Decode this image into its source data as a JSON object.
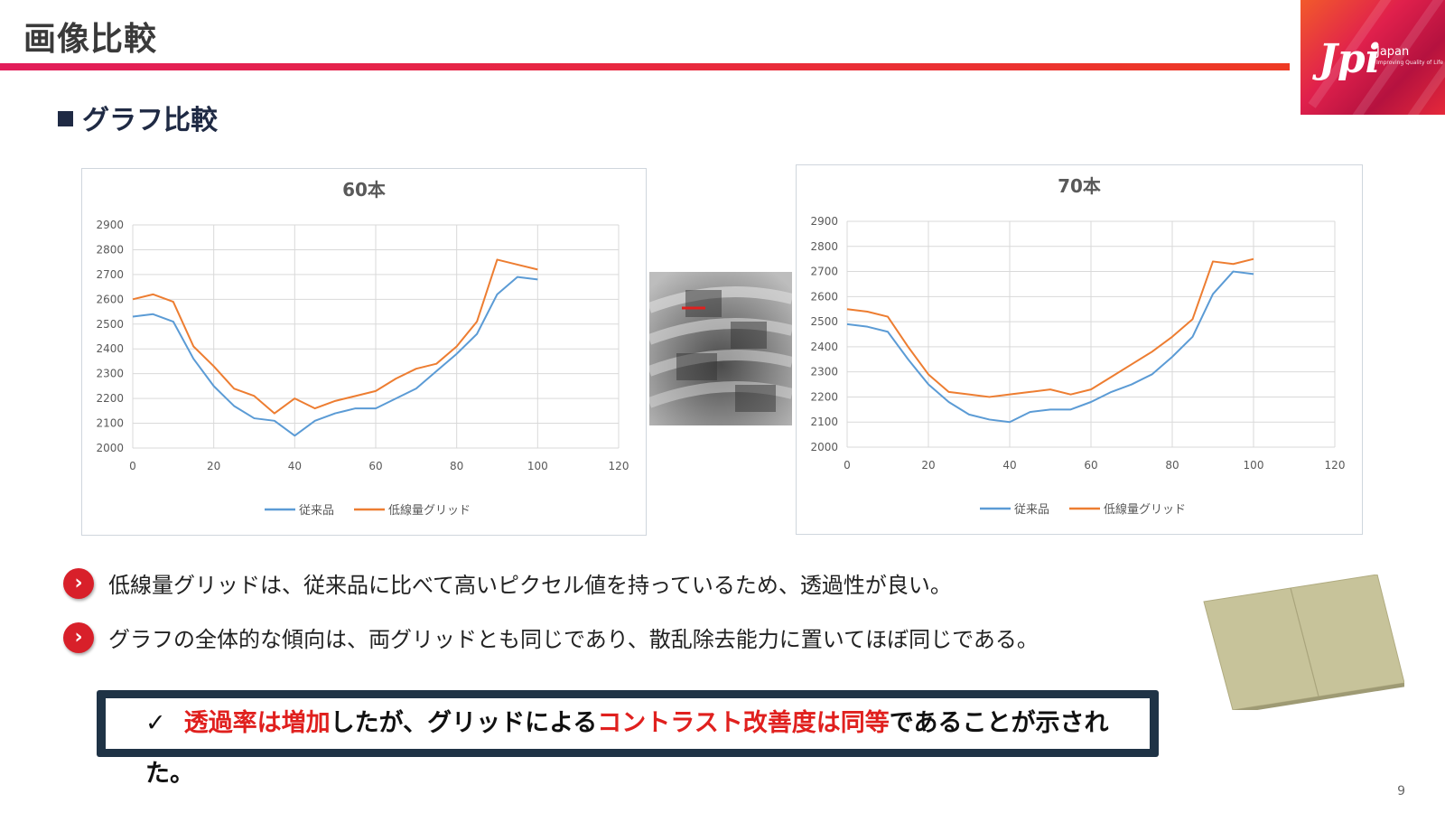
{
  "slide": {
    "title": "画像比較",
    "page_number": "9"
  },
  "logo": {
    "mark": "Jpi",
    "country": "Japan",
    "tagline": "Improving Quality of Life"
  },
  "section": {
    "heading": "グラフ比較"
  },
  "chart_data": [
    {
      "type": "line",
      "title": "60本",
      "xlim": [
        0,
        120
      ],
      "ylim": [
        2000,
        2900
      ],
      "x_ticks": [
        "0",
        "20",
        "40",
        "60",
        "80",
        "100",
        "120"
      ],
      "y_ticks": [
        "2000",
        "2100",
        "2200",
        "2300",
        "2400",
        "2500",
        "2600",
        "2700",
        "2800",
        "2900"
      ],
      "grid": true,
      "legend_position": "bottom",
      "x": [
        0,
        5,
        10,
        15,
        20,
        25,
        30,
        35,
        40,
        45,
        50,
        55,
        60,
        65,
        70,
        75,
        80,
        85,
        90,
        95,
        100
      ],
      "series": [
        {
          "name": "従来品",
          "color": "#5b9bd5",
          "values": [
            2530,
            2540,
            2510,
            2360,
            2250,
            2170,
            2120,
            2110,
            2050,
            2110,
            2140,
            2160,
            2160,
            2200,
            2240,
            2310,
            2380,
            2460,
            2620,
            2690,
            2680
          ]
        },
        {
          "name": "低線量グリッド",
          "color": "#ed7d31",
          "values": [
            2600,
            2620,
            2590,
            2410,
            2330,
            2240,
            2210,
            2140,
            2200,
            2160,
            2190,
            2210,
            2230,
            2280,
            2320,
            2340,
            2410,
            2510,
            2760,
            2740,
            2720
          ]
        }
      ]
    },
    {
      "type": "line",
      "title": "70本",
      "xlim": [
        0,
        120
      ],
      "ylim": [
        2000,
        2900
      ],
      "x_ticks": [
        "0",
        "20",
        "40",
        "60",
        "80",
        "100",
        "120"
      ],
      "y_ticks": [
        "2000",
        "2100",
        "2200",
        "2300",
        "2400",
        "2500",
        "2600",
        "2700",
        "2800",
        "2900"
      ],
      "grid": true,
      "legend_position": "bottom",
      "x": [
        0,
        5,
        10,
        15,
        20,
        25,
        30,
        35,
        40,
        45,
        50,
        55,
        60,
        65,
        70,
        75,
        80,
        85,
        90,
        95,
        100
      ],
      "series": [
        {
          "name": "従来品",
          "color": "#5b9bd5",
          "values": [
            2490,
            2480,
            2460,
            2350,
            2250,
            2180,
            2130,
            2110,
            2100,
            2140,
            2150,
            2150,
            2180,
            2220,
            2250,
            2290,
            2360,
            2440,
            2610,
            2700,
            2690
          ]
        },
        {
          "name": "低線量グリッド",
          "color": "#ed7d31",
          "values": [
            2550,
            2540,
            2520,
            2400,
            2290,
            2220,
            2210,
            2200,
            2210,
            2220,
            2230,
            2210,
            2230,
            2280,
            2330,
            2380,
            2440,
            2510,
            2740,
            2730,
            2750
          ]
        }
      ]
    }
  ],
  "bullets": [
    "低線量グリッドは、従来品に比べて高いピクセル値を持っているため、透過性が良い。",
    "グラフの全体的な傾向は、両グリッドとも同じであり、散乱除去能力に置いてほぼ同じである。"
  ],
  "conclusion": {
    "check": "✓",
    "part1": "透過率は増加",
    "part2": "したが、グリッドによる",
    "part3": "コントラスト改善度は同等",
    "part4": "であることが示された。"
  },
  "colors": {
    "accent_red": "#e0201e",
    "header_bar": "#e8283f",
    "series_blue": "#5b9bd5",
    "series_orange": "#ed7d31",
    "navy": "#1f3346"
  }
}
